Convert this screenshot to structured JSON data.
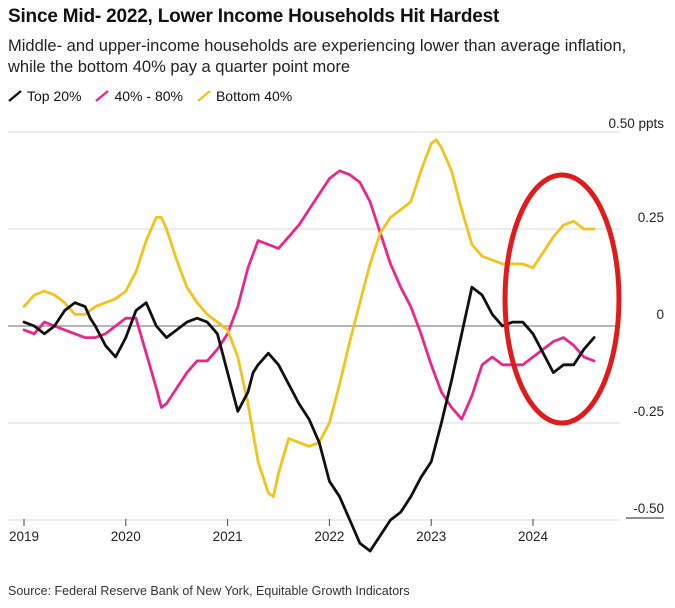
{
  "title": "Since Mid- 2022, Lower Income Households Hit Hardest",
  "subtitle": "Middle- and upper-income households are experiencing lower than average inflation, while the bottom 40% pay a quarter point more",
  "source": "Source: Federal Reserve Bank of New York, Equitable Growth Indicators",
  "chart_data": {
    "type": "line",
    "y_unit_label": "0.50 ppts",
    "ylim": [
      -0.5,
      0.5
    ],
    "yticks": [
      {
        "value": 0.5,
        "label": "0.50 ppts"
      },
      {
        "value": 0.25,
        "label": "0.25"
      },
      {
        "value": 0,
        "label": "0"
      },
      {
        "value": -0.25,
        "label": "-0.25"
      },
      {
        "value": -0.5,
        "label": "-0.50"
      }
    ],
    "xlim": [
      2019.0,
      2024.95
    ],
    "xticks": [
      "2019",
      "2020",
      "2021",
      "2022",
      "2023",
      "2024"
    ],
    "grid": true,
    "legend_position": "top-left",
    "annotation": "red ellipse highlighting 2024 values",
    "series": [
      {
        "name": "Top 20%",
        "color": "#111111",
        "x": [
          2019.0,
          2019.1,
          2019.2,
          2019.3,
          2019.4,
          2019.5,
          2019.6,
          2019.65,
          2019.7,
          2019.8,
          2019.9,
          2020.0,
          2020.1,
          2020.2,
          2020.25,
          2020.3,
          2020.4,
          2020.5,
          2020.6,
          2020.7,
          2020.8,
          2020.9,
          2021.0,
          2021.1,
          2021.2,
          2021.25,
          2021.3,
          2021.4,
          2021.5,
          2021.6,
          2021.7,
          2021.8,
          2021.9,
          2022.0,
          2022.1,
          2022.2,
          2022.3,
          2022.4,
          2022.5,
          2022.6,
          2022.7,
          2022.8,
          2022.9,
          2023.0,
          2023.1,
          2023.2,
          2023.3,
          2023.4,
          2023.45,
          2023.5,
          2023.6,
          2023.7,
          2023.8,
          2023.9,
          2024.0,
          2024.1,
          2024.2,
          2024.3,
          2024.4,
          2024.5,
          2024.6
        ],
        "values": [
          0.01,
          0.0,
          -0.02,
          0.0,
          0.04,
          0.06,
          0.05,
          0.02,
          0.0,
          -0.05,
          -0.08,
          -0.03,
          0.04,
          0.06,
          0.03,
          0.0,
          -0.03,
          -0.01,
          0.01,
          0.02,
          0.01,
          -0.02,
          -0.12,
          -0.22,
          -0.17,
          -0.12,
          -0.1,
          -0.07,
          -0.1,
          -0.15,
          -0.2,
          -0.24,
          -0.3,
          -0.4,
          -0.44,
          -0.5,
          -0.56,
          -0.58,
          -0.54,
          -0.5,
          -0.48,
          -0.44,
          -0.39,
          -0.35,
          -0.25,
          -0.14,
          -0.02,
          0.1,
          0.09,
          0.08,
          0.03,
          0.0,
          0.01,
          0.01,
          -0.02,
          -0.07,
          -0.12,
          -0.1,
          -0.1,
          -0.06,
          -0.03
        ]
      },
      {
        "name": "40% - 80%",
        "color": "#e8278e",
        "x": [
          2019.0,
          2019.1,
          2019.2,
          2019.3,
          2019.4,
          2019.5,
          2019.6,
          2019.7,
          2019.8,
          2019.9,
          2020.0,
          2020.1,
          2020.2,
          2020.3,
          2020.35,
          2020.4,
          2020.5,
          2020.6,
          2020.7,
          2020.8,
          2020.9,
          2021.0,
          2021.1,
          2021.2,
          2021.3,
          2021.4,
          2021.5,
          2021.6,
          2021.7,
          2021.8,
          2021.9,
          2022.0,
          2022.1,
          2022.2,
          2022.3,
          2022.4,
          2022.5,
          2022.6,
          2022.7,
          2022.8,
          2022.9,
          2023.0,
          2023.1,
          2023.2,
          2023.3,
          2023.4,
          2023.5,
          2023.6,
          2023.7,
          2023.8,
          2023.9,
          2024.0,
          2024.1,
          2024.2,
          2024.3,
          2024.4,
          2024.5,
          2024.6
        ],
        "values": [
          -0.01,
          -0.02,
          0.01,
          0.0,
          -0.01,
          -0.02,
          -0.03,
          -0.03,
          -0.02,
          0.0,
          0.02,
          0.02,
          -0.07,
          -0.16,
          -0.21,
          -0.2,
          -0.16,
          -0.12,
          -0.09,
          -0.09,
          -0.06,
          -0.02,
          0.05,
          0.15,
          0.22,
          0.21,
          0.2,
          0.23,
          0.26,
          0.3,
          0.34,
          0.38,
          0.4,
          0.39,
          0.37,
          0.32,
          0.24,
          0.16,
          0.1,
          0.05,
          -0.02,
          -0.1,
          -0.17,
          -0.21,
          -0.24,
          -0.18,
          -0.1,
          -0.08,
          -0.1,
          -0.1,
          -0.1,
          -0.08,
          -0.06,
          -0.04,
          -0.03,
          -0.05,
          -0.08,
          -0.09
        ]
      },
      {
        "name": "Bottom 40%",
        "color": "#f2c31c",
        "x": [
          2019.0,
          2019.1,
          2019.2,
          2019.3,
          2019.4,
          2019.5,
          2019.6,
          2019.7,
          2019.8,
          2019.9,
          2020.0,
          2020.1,
          2020.2,
          2020.3,
          2020.35,
          2020.4,
          2020.5,
          2020.6,
          2020.7,
          2020.8,
          2020.9,
          2021.0,
          2021.1,
          2021.2,
          2021.3,
          2021.4,
          2021.45,
          2021.5,
          2021.6,
          2021.7,
          2021.8,
          2021.9,
          2022.0,
          2022.1,
          2022.2,
          2022.3,
          2022.4,
          2022.5,
          2022.6,
          2022.7,
          2022.8,
          2022.9,
          2023.0,
          2023.05,
          2023.1,
          2023.2,
          2023.3,
          2023.4,
          2023.5,
          2023.6,
          2023.7,
          2023.8,
          2023.9,
          2024.0,
          2024.1,
          2024.2,
          2024.3,
          2024.4,
          2024.5,
          2024.6
        ],
        "values": [
          0.05,
          0.08,
          0.09,
          0.08,
          0.06,
          0.03,
          0.03,
          0.05,
          0.06,
          0.07,
          0.09,
          0.14,
          0.22,
          0.28,
          0.28,
          0.25,
          0.17,
          0.1,
          0.06,
          0.03,
          0.01,
          -0.01,
          -0.08,
          -0.2,
          -0.35,
          -0.43,
          -0.44,
          -0.38,
          -0.29,
          -0.3,
          -0.31,
          -0.3,
          -0.25,
          -0.15,
          -0.04,
          0.06,
          0.16,
          0.24,
          0.28,
          0.3,
          0.32,
          0.4,
          0.47,
          0.48,
          0.46,
          0.4,
          0.3,
          0.21,
          0.18,
          0.17,
          0.16,
          0.16,
          0.16,
          0.15,
          0.19,
          0.23,
          0.26,
          0.27,
          0.25,
          0.25
        ]
      }
    ]
  }
}
